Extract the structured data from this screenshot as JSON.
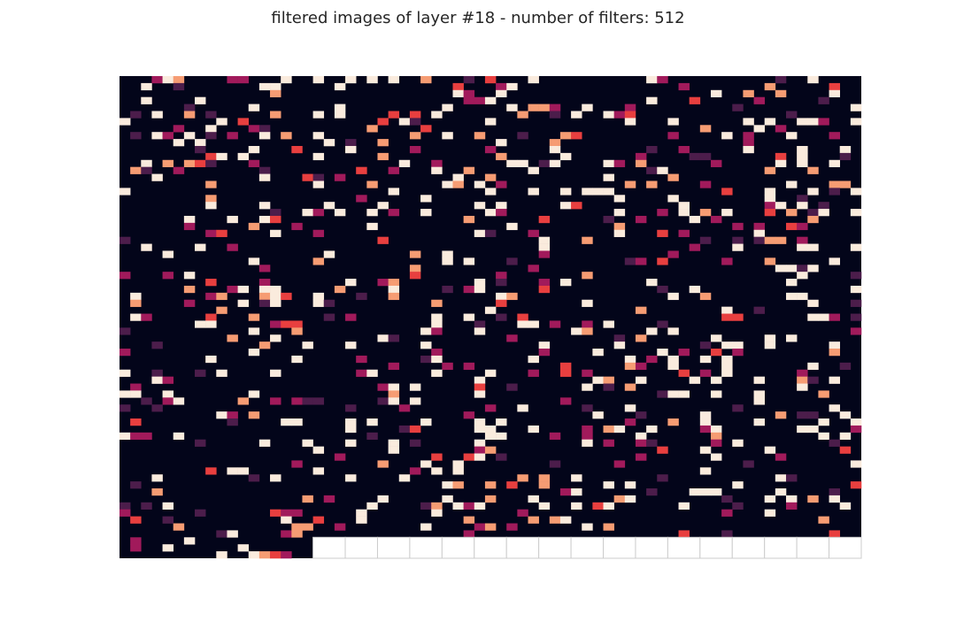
{
  "chart_data": {
    "type": "heatmap",
    "title": "filtered images of layer #18 - number of filters: 512",
    "xlabel": "",
    "ylabel": "",
    "filters": 512,
    "grid_columns": 23,
    "grid_rows": 23,
    "cells_per_filter": [
      3,
      3
    ],
    "empty_slot_border": "#cccccc",
    "colormap": [
      "#03051a",
      "#4c1d4b",
      "#a11a5b",
      "#e83f3f",
      "#f69c73",
      "#faebdd"
    ],
    "seed": 18
  }
}
